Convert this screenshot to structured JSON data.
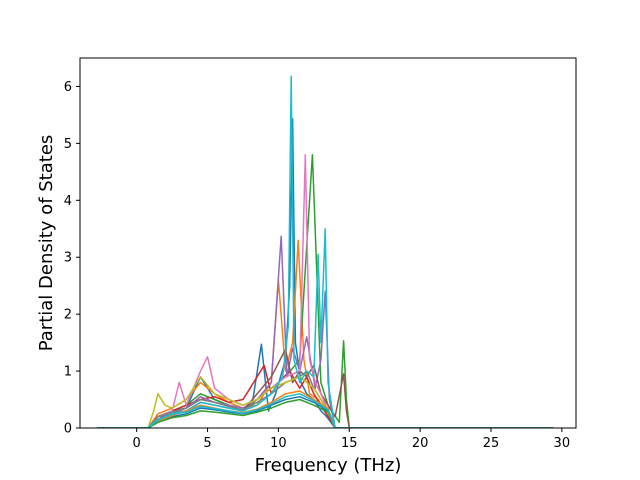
{
  "chart_data": {
    "type": "line",
    "title": "",
    "xlabel": "Frequency (THz)",
    "ylabel": "Partial Density of States",
    "xlim": [
      -4.0,
      31.0
    ],
    "ylim": [
      0,
      6.5
    ],
    "xticks": [
      "0",
      "5",
      "10",
      "15",
      "20",
      "25",
      "30"
    ],
    "xtick_values": [
      0,
      5,
      10,
      15,
      20,
      25,
      30
    ],
    "yticks": [
      "0",
      "1",
      "2",
      "3",
      "4",
      "5",
      "6"
    ],
    "ytick_values": [
      0,
      1,
      2,
      3,
      4,
      5,
      6
    ],
    "grid": false,
    "legend": "none",
    "series": [
      {
        "color": "#1f77b4",
        "x": [
          -2.8,
          0.8,
          1.5,
          2.5,
          3.5,
          4.5,
          5.5,
          6.5,
          7.5,
          8.2,
          8.8,
          9.3,
          9.8,
          10.5,
          10.8,
          11.0,
          11.2,
          11.6,
          12.0,
          12.5,
          13.0,
          13.4,
          14.0,
          29.4
        ],
        "y": [
          0,
          0,
          0.2,
          0.3,
          0.35,
          0.9,
          0.5,
          0.4,
          0.3,
          0.5,
          1.47,
          0.3,
          0.6,
          1.2,
          2.5,
          5.43,
          1.5,
          0.8,
          0.6,
          0.5,
          0.3,
          0.2,
          0,
          0
        ]
      },
      {
        "color": "#ff7f0e",
        "x": [
          -2.8,
          0.8,
          1.5,
          2.5,
          3.5,
          4.5,
          5.5,
          6.5,
          7.5,
          8.5,
          9.5,
          10.0,
          10.5,
          11.0,
          11.4,
          11.8,
          12.2,
          12.8,
          13.3,
          14.0,
          29.4
        ],
        "y": [
          0,
          0,
          0.25,
          0.35,
          0.5,
          0.8,
          0.6,
          0.45,
          0.35,
          0.4,
          0.8,
          2.6,
          1.0,
          1.5,
          3.3,
          1.2,
          0.6,
          0.5,
          0.3,
          0,
          0
        ]
      },
      {
        "color": "#2ca02c",
        "x": [
          -2.8,
          0.8,
          1.5,
          2.5,
          3.5,
          4.5,
          5.5,
          6.5,
          7.5,
          8.5,
          9.5,
          10.5,
          11.5,
          12.4,
          13.0,
          13.5,
          14.3,
          14.6,
          14.8,
          15.0,
          29.4
        ],
        "y": [
          0,
          0,
          0.2,
          0.3,
          0.4,
          0.6,
          0.5,
          0.4,
          0.3,
          0.5,
          0.7,
          0.9,
          1.2,
          4.8,
          0.8,
          0.4,
          0.1,
          1.53,
          0.5,
          0,
          0
        ]
      },
      {
        "color": "#d62728",
        "x": [
          -2.8,
          0.8,
          1.5,
          2.5,
          3.5,
          4.5,
          5.5,
          6.5,
          7.5,
          8.0,
          8.5,
          9.0,
          9.5,
          10.0,
          10.8,
          11.5,
          12.0,
          12.5,
          13.0,
          14.0,
          29.4
        ],
        "y": [
          0,
          0,
          0.15,
          0.3,
          0.4,
          0.5,
          0.55,
          0.45,
          0.5,
          0.7,
          0.9,
          1.1,
          0.6,
          0.8,
          1.0,
          0.7,
          0.9,
          0.6,
          0.4,
          0,
          0
        ]
      },
      {
        "color": "#9467bd",
        "x": [
          -2.8,
          0.8,
          1.5,
          2.5,
          3.5,
          4.5,
          5.5,
          6.5,
          7.5,
          8.5,
          9.5,
          10.2,
          10.6,
          11.0,
          11.5,
          12.0,
          12.6,
          13.0,
          13.3,
          13.6,
          14.0,
          29.4
        ],
        "y": [
          0,
          0,
          0.2,
          0.25,
          0.35,
          0.55,
          0.45,
          0.4,
          0.35,
          0.5,
          0.8,
          3.37,
          0.9,
          1.4,
          1.0,
          1.6,
          0.7,
          1.2,
          2.4,
          0.5,
          0,
          0
        ]
      },
      {
        "color": "#8c564b",
        "x": [
          -2.8,
          0.8,
          1.5,
          2.5,
          3.5,
          4.5,
          5.5,
          6.5,
          7.5,
          8.5,
          9.5,
          10.5,
          11.0,
          11.5,
          12.0,
          12.5,
          13.0,
          13.5,
          14.0,
          14.6,
          14.8,
          15.0,
          29.4
        ],
        "y": [
          0,
          0,
          0.15,
          0.25,
          0.3,
          0.45,
          0.4,
          0.35,
          0.3,
          0.6,
          0.9,
          1.38,
          0.8,
          1.0,
          0.9,
          1.1,
          0.6,
          0.4,
          0.2,
          0.95,
          0.3,
          0,
          0
        ]
      },
      {
        "color": "#e377c2",
        "x": [
          -2.8,
          0.8,
          1.5,
          2.5,
          3.0,
          3.5,
          4.5,
          5.0,
          5.5,
          6.5,
          7.5,
          8.5,
          9.5,
          10.5,
          11.5,
          11.9,
          12.2,
          12.6,
          13.0,
          13.5,
          14.0,
          29.4
        ],
        "y": [
          0,
          0,
          0.2,
          0.3,
          0.8,
          0.4,
          1.0,
          1.25,
          0.7,
          0.5,
          0.4,
          0.5,
          0.7,
          0.9,
          1.0,
          4.8,
          1.2,
          0.8,
          0.6,
          0.3,
          0,
          0
        ]
      },
      {
        "color": "#7f7f7f",
        "x": [
          -2.8,
          0.8,
          1.5,
          2.5,
          3.5,
          4.5,
          5.5,
          6.5,
          7.5,
          8.5,
          9.5,
          10.5,
          11.5,
          12.0,
          12.5,
          13.0,
          13.5,
          14.0,
          29.4
        ],
        "y": [
          0,
          0,
          0.2,
          0.28,
          0.35,
          0.5,
          0.45,
          0.38,
          0.32,
          0.45,
          0.6,
          0.8,
          0.9,
          1.0,
          0.7,
          0.5,
          0.3,
          0,
          0
        ]
      },
      {
        "color": "#bcbd22",
        "x": [
          -2.8,
          0.8,
          1.2,
          1.5,
          2.0,
          2.5,
          3.5,
          4.5,
          5.5,
          6.5,
          7.5,
          8.5,
          9.5,
          10.5,
          11.5,
          12.5,
          13.0,
          13.5,
          14.0,
          29.4
        ],
        "y": [
          0,
          0,
          0.3,
          0.6,
          0.4,
          0.35,
          0.5,
          0.9,
          0.6,
          0.5,
          0.4,
          0.5,
          0.7,
          0.8,
          0.9,
          0.7,
          0.5,
          0.3,
          0,
          0
        ]
      },
      {
        "color": "#17becf",
        "x": [
          -2.8,
          0.8,
          1.5,
          2.5,
          3.5,
          4.5,
          5.5,
          6.5,
          7.5,
          8.5,
          9.5,
          10.3,
          10.7,
          10.9,
          11.1,
          11.5,
          12.0,
          12.5,
          12.8,
          13.0,
          13.3,
          13.5,
          14.0,
          29.4
        ],
        "y": [
          0,
          0,
          0.15,
          0.25,
          0.3,
          0.45,
          0.4,
          0.35,
          0.3,
          0.4,
          0.6,
          0.9,
          1.8,
          6.18,
          1.2,
          0.8,
          1.0,
          0.9,
          3.05,
          1.5,
          3.5,
          0.8,
          0,
          0
        ]
      },
      {
        "color": "#1f77b4",
        "x": [
          -2.8,
          0.8,
          1.5,
          2.5,
          3.5,
          4.5,
          5.5,
          6.5,
          7.5,
          8.5,
          9.5,
          10.5,
          11.5,
          12.5,
          13.5,
          14.0,
          29.4
        ],
        "y": [
          0,
          0,
          0.1,
          0.2,
          0.25,
          0.35,
          0.32,
          0.28,
          0.25,
          0.3,
          0.4,
          0.5,
          0.55,
          0.45,
          0.3,
          0,
          0
        ]
      },
      {
        "color": "#ff7f0e",
        "x": [
          -2.8,
          0.8,
          1.5,
          2.5,
          3.5,
          4.5,
          5.5,
          6.5,
          7.5,
          8.5,
          9.5,
          10.5,
          11.5,
          12.5,
          13.5,
          14.0,
          29.4
        ],
        "y": [
          0,
          0,
          0.12,
          0.22,
          0.3,
          0.4,
          0.35,
          0.3,
          0.27,
          0.33,
          0.45,
          0.6,
          0.65,
          0.5,
          0.35,
          0,
          0
        ]
      },
      {
        "color": "#2ca02c",
        "x": [
          -2.8,
          0.8,
          1.5,
          2.5,
          3.5,
          4.5,
          5.5,
          6.5,
          7.5,
          8.5,
          9.5,
          10.5,
          11.5,
          12.5,
          13.5,
          14.0,
          29.4
        ],
        "y": [
          0,
          0,
          0.1,
          0.18,
          0.22,
          0.3,
          0.28,
          0.25,
          0.22,
          0.28,
          0.35,
          0.45,
          0.5,
          0.4,
          0.28,
          0,
          0
        ]
      },
      {
        "color": "#17becf",
        "x": [
          -2.8,
          0.8,
          1.5,
          2.5,
          3.5,
          4.5,
          5.5,
          6.5,
          7.5,
          8.5,
          9.5,
          10.5,
          11.5,
          12.5,
          13.5,
          14.0,
          29.4
        ],
        "y": [
          0,
          0,
          0.14,
          0.24,
          0.28,
          0.38,
          0.34,
          0.3,
          0.26,
          0.32,
          0.42,
          0.55,
          0.6,
          0.48,
          0.32,
          0,
          0
        ]
      }
    ]
  }
}
